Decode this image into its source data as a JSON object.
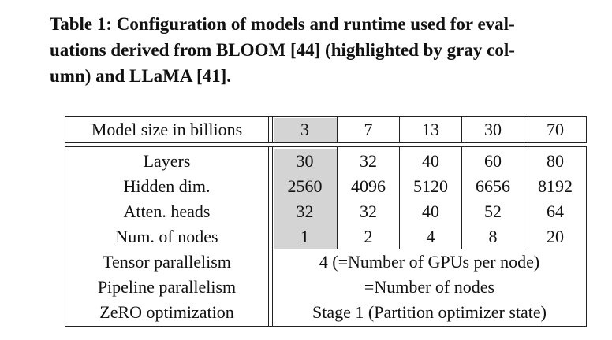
{
  "caption": {
    "lines": [
      "Table 1: Configuration of models and runtime used for eval-",
      "uations derived from BLOOM [44] (highlighted by gray col-",
      "umn) and LLaMA [41]."
    ]
  },
  "table": {
    "header": {
      "label": "Model size in billions",
      "sizes": [
        "3",
        "7",
        "13",
        "30",
        "70"
      ]
    },
    "rows": [
      {
        "label": "Layers",
        "values": [
          "30",
          "32",
          "40",
          "60",
          "80"
        ]
      },
      {
        "label": "Hidden dim.",
        "values": [
          "2560",
          "4096",
          "5120",
          "6656",
          "8192"
        ]
      },
      {
        "label": "Atten. heads",
        "values": [
          "32",
          "32",
          "40",
          "52",
          "64"
        ]
      },
      {
        "label": "Num. of nodes",
        "values": [
          "1",
          "2",
          "4",
          "8",
          "20"
        ]
      }
    ],
    "spanning_rows": [
      {
        "label": "Tensor parallelism",
        "value": "4 (=Number of GPUs per node)"
      },
      {
        "label": "Pipeline parallelism",
        "value": "=Number of nodes"
      },
      {
        "label": "ZeRO optimization",
        "value": "Stage 1 (Partition optimizer state)"
      }
    ],
    "highlight_color": "#d4d4d4"
  }
}
